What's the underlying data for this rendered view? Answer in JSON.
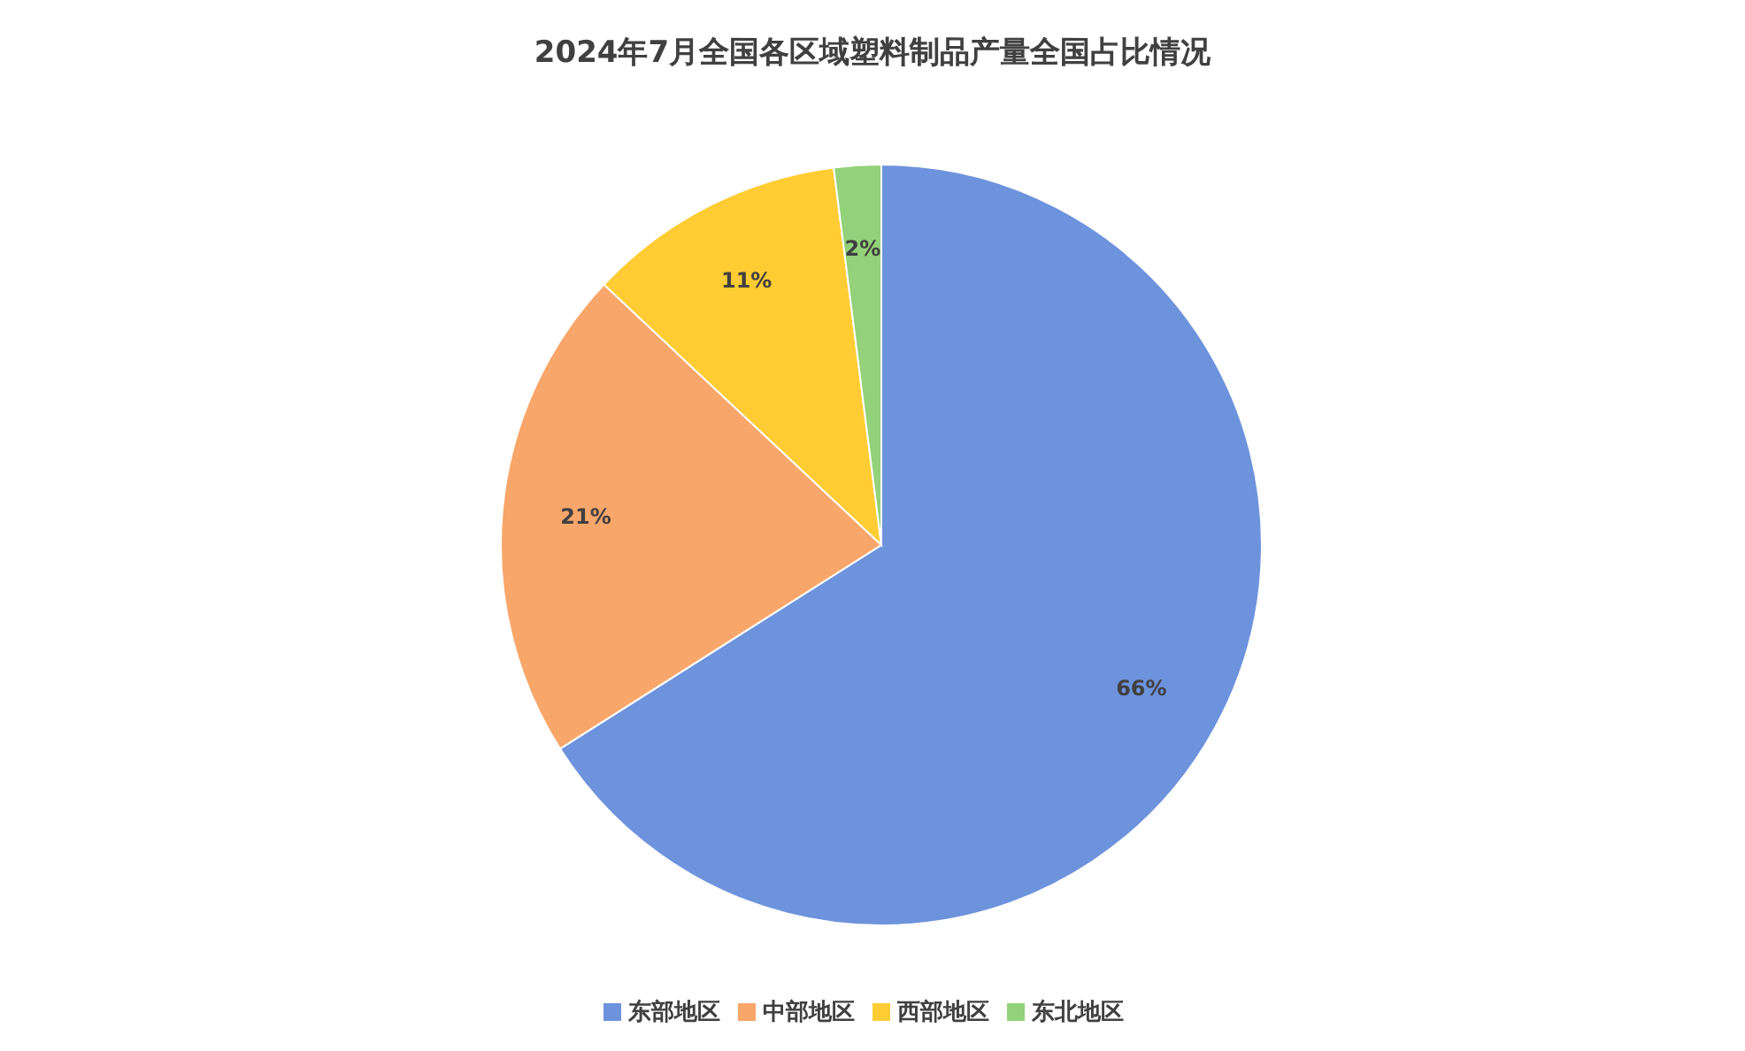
{
  "chart_data": {
    "type": "pie",
    "title": "2024年7月全国各区域塑料制品产量全国占比情况",
    "categories": [
      "东部地区",
      "中部地区",
      "西部地区",
      "东北地区"
    ],
    "values": [
      66,
      21,
      11,
      2
    ],
    "colors": [
      "#6e93dd",
      "#f8a66a",
      "#ffcc33",
      "#93d27a"
    ],
    "value_labels": [
      "66%",
      "21%",
      "11%",
      "2%"
    ],
    "legend": "bottom"
  }
}
